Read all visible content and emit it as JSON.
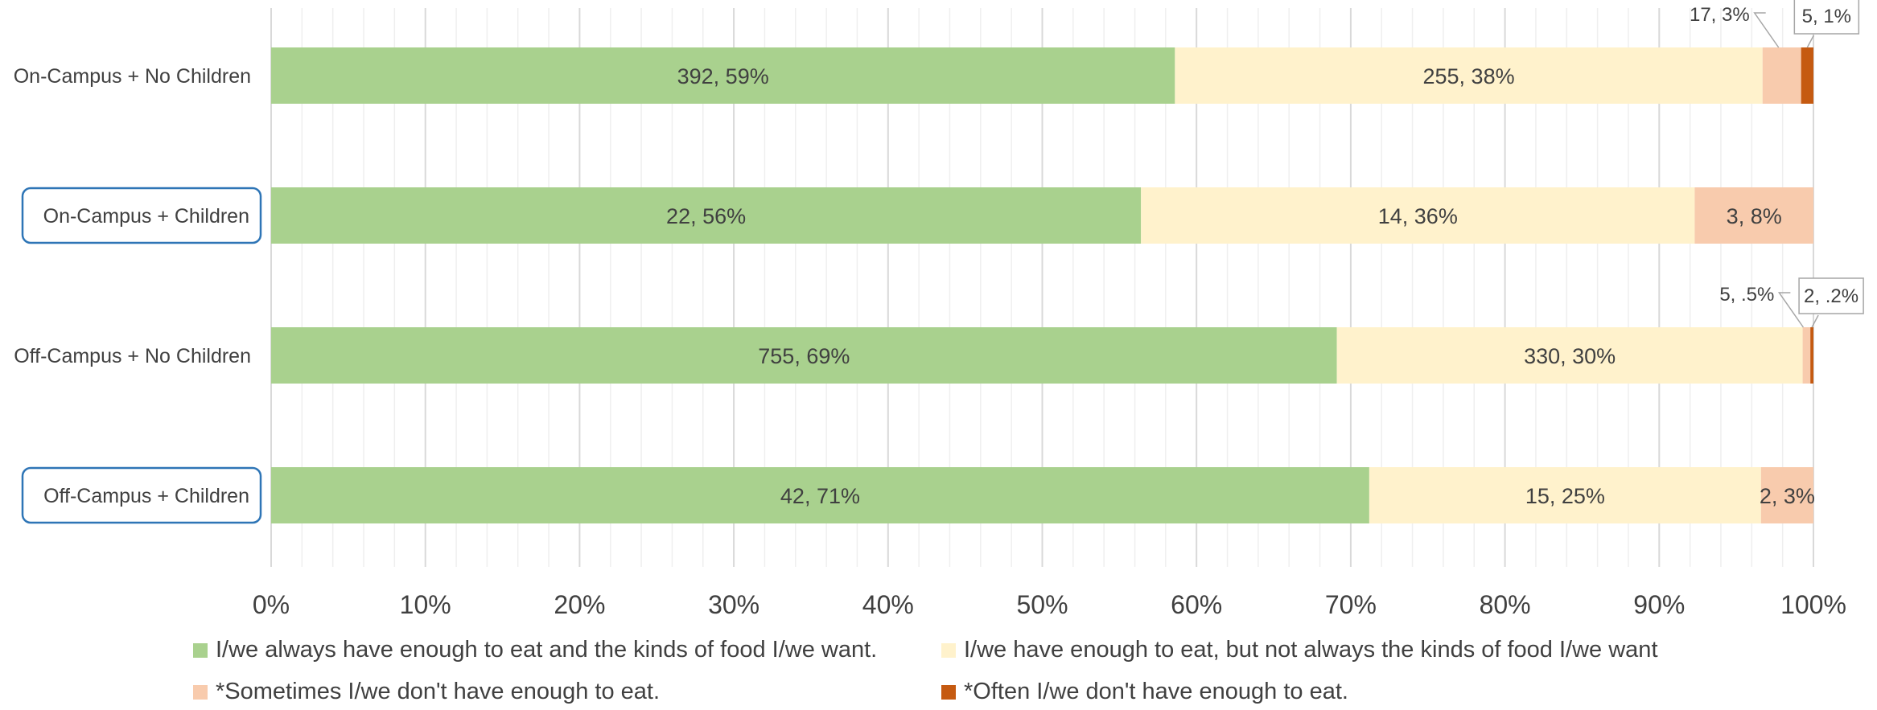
{
  "chart_data": {
    "type": "bar",
    "orientation": "horizontal",
    "stacked": "percent",
    "categories": [
      "On-Campus + No Children",
      "On-Campus + Children",
      "Off-Campus + No Children",
      "Off-Campus + Children"
    ],
    "series": [
      {
        "name": "I/we always have enough to eat and the kinds of food I/we want.",
        "color": "#a9d18e",
        "values": [
          58.6,
          56.4,
          69.1,
          71.2
        ],
        "labels": [
          "392, 59%",
          "22,  56%",
          "755, 69%",
          "42, 71%"
        ]
      },
      {
        "name": "I/we have enough to eat, but not always the kinds of food I/we want",
        "color": "#fff2cc",
        "values": [
          38.1,
          35.9,
          30.2,
          25.4
        ],
        "labels": [
          "255, 38%",
          "14, 36%",
          "330, 30%",
          "15, 25%"
        ]
      },
      {
        "name": "*Sometimes I/we don't have enough to eat.",
        "color": "#f8cbad",
        "values": [
          2.5,
          7.7,
          0.5,
          3.4
        ],
        "labels": [
          "17, 3%",
          "3, 8%",
          "5, .5%",
          "2, 3%"
        ]
      },
      {
        "name": "*Often I/we don't have enough to eat.",
        "color": "#c55a11",
        "values": [
          0.8,
          0,
          0.2,
          0
        ],
        "labels": [
          "5, 1%",
          "",
          "2, .2%",
          ""
        ]
      }
    ],
    "x_ticks": [
      "0%",
      "10%",
      "20%",
      "30%",
      "40%",
      "50%",
      "60%",
      "70%",
      "80%",
      "90%",
      "100%"
    ],
    "xlim": [
      0,
      100
    ],
    "grid": "vertical",
    "legend_position": "bottom",
    "boxed_categories": [
      "On-Campus + Children",
      "Off-Campus + Children"
    ],
    "callout_labels": [
      {
        "category": 0,
        "series": 2
      },
      {
        "category": 0,
        "series": 3
      },
      {
        "category": 2,
        "series": 2
      },
      {
        "category": 2,
        "series": 3
      }
    ],
    "colors": {
      "grid_major": "#d9d9d9",
      "grid_minor": "#efefef",
      "text": "#404040",
      "category_box": "#2e75b6",
      "callout_border": "#a6a6a6"
    }
  }
}
